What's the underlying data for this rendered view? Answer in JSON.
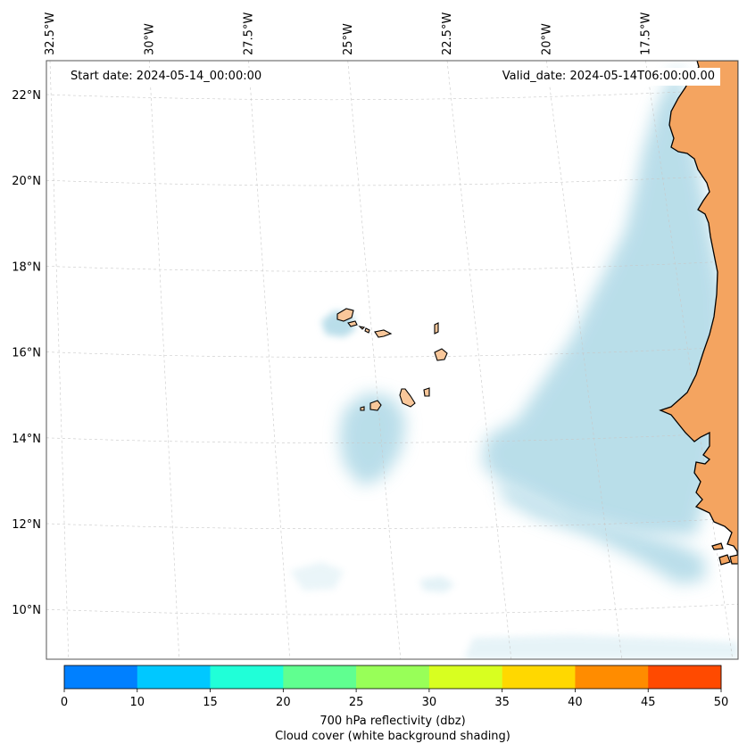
{
  "map": {
    "start_date_label": "Start date: 2024-05-14_00:00:00",
    "valid_date_label": "Valid_date: 2024-05-14T06:00:00.00",
    "lon_labels": [
      {
        "lon": -32.5,
        "text": "32.5°W"
      },
      {
        "lon": -30.0,
        "text": "30°W"
      },
      {
        "lon": -27.5,
        "text": "27.5°W"
      },
      {
        "lon": -25.0,
        "text": "25°W"
      },
      {
        "lon": -22.5,
        "text": "22.5°W"
      },
      {
        "lon": -20.0,
        "text": "20°W"
      },
      {
        "lon": -17.5,
        "text": "17.5°W"
      }
    ],
    "lat_labels": [
      {
        "lat": 22,
        "text": "22°N"
      },
      {
        "lat": 20,
        "text": "20°N"
      },
      {
        "lat": 18,
        "text": "18°N"
      },
      {
        "lat": 16,
        "text": "16°N"
      },
      {
        "lat": 14,
        "text": "14°N"
      },
      {
        "lat": 12,
        "text": "12°N"
      },
      {
        "lat": 10,
        "text": "10°N"
      }
    ],
    "land_color": "#f4a460",
    "island_color": "#f9c79a",
    "cloud_color": "#add8e6",
    "coast_color": "#000000"
  },
  "colorbar": {
    "ticks": [
      "0",
      "10",
      "15",
      "20",
      "25",
      "30",
      "35",
      "40",
      "45",
      "50"
    ],
    "colors": [
      "#0080ff",
      "#00c8ff",
      "#20ffd8",
      "#60ff90",
      "#98ff58",
      "#d8ff20",
      "#ffd800",
      "#ff8c00",
      "#ff4a00"
    ],
    "label_line1": "700 hPa reflectivity (dbz)",
    "label_line2": "Cloud cover (white background shading)"
  }
}
